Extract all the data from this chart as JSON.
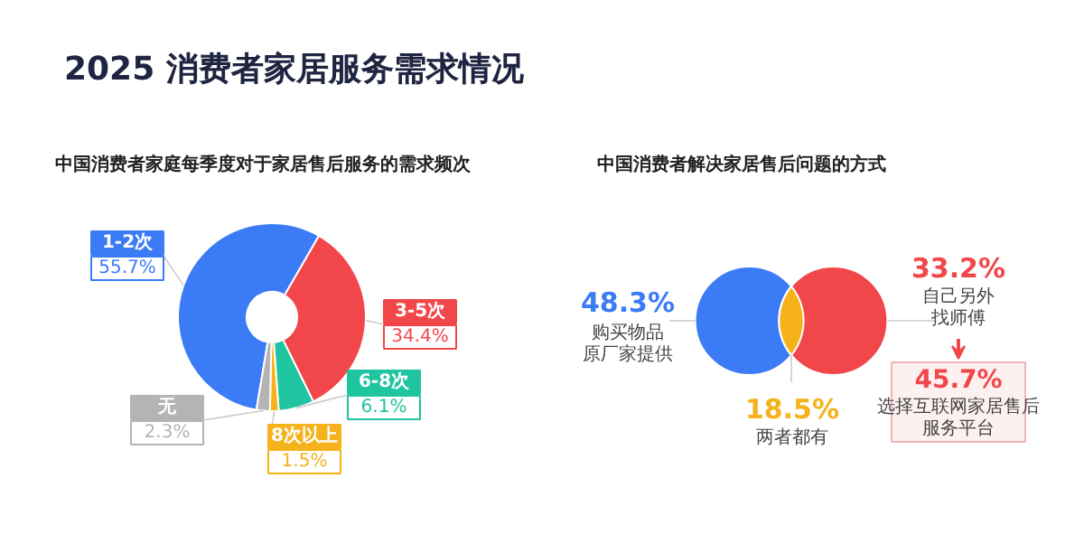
{
  "chart_data": [
    {
      "type": "donut",
      "title": "2025 消费者家居服务需求情况",
      "subtitle": "中国消费者家庭每季度对于家居售后服务的需求频次",
      "categories": [
        "1-2次",
        "3-5次",
        "6-8次",
        "8次以上",
        "无"
      ],
      "values": [
        55.7,
        34.4,
        6.1,
        1.5,
        2.3
      ],
      "colors": [
        "#3b7bf6",
        "#f2474a",
        "#1fc4a0",
        "#f5b21b",
        "#b4b4b4"
      ],
      "value_labels": [
        "55.7%",
        "34.4%",
        "6.1%",
        "1.5%",
        "2.3%"
      ]
    },
    {
      "type": "other",
      "title": "中国消费者解决家居售后问题的方式",
      "categories": [
        "购买物品原厂家提供",
        "自己另外找师傅",
        "两者都有"
      ],
      "values": [
        48.3,
        33.2,
        18.5
      ],
      "colors": [
        "#3b7bf6",
        "#f2474a",
        "#f5b21b"
      ],
      "value_labels": [
        "48.3%",
        "33.2%",
        "18.5%"
      ],
      "annotations": [
        "45.7%",
        "选择互联网家居售后服务平台"
      ]
    }
  ]
}
